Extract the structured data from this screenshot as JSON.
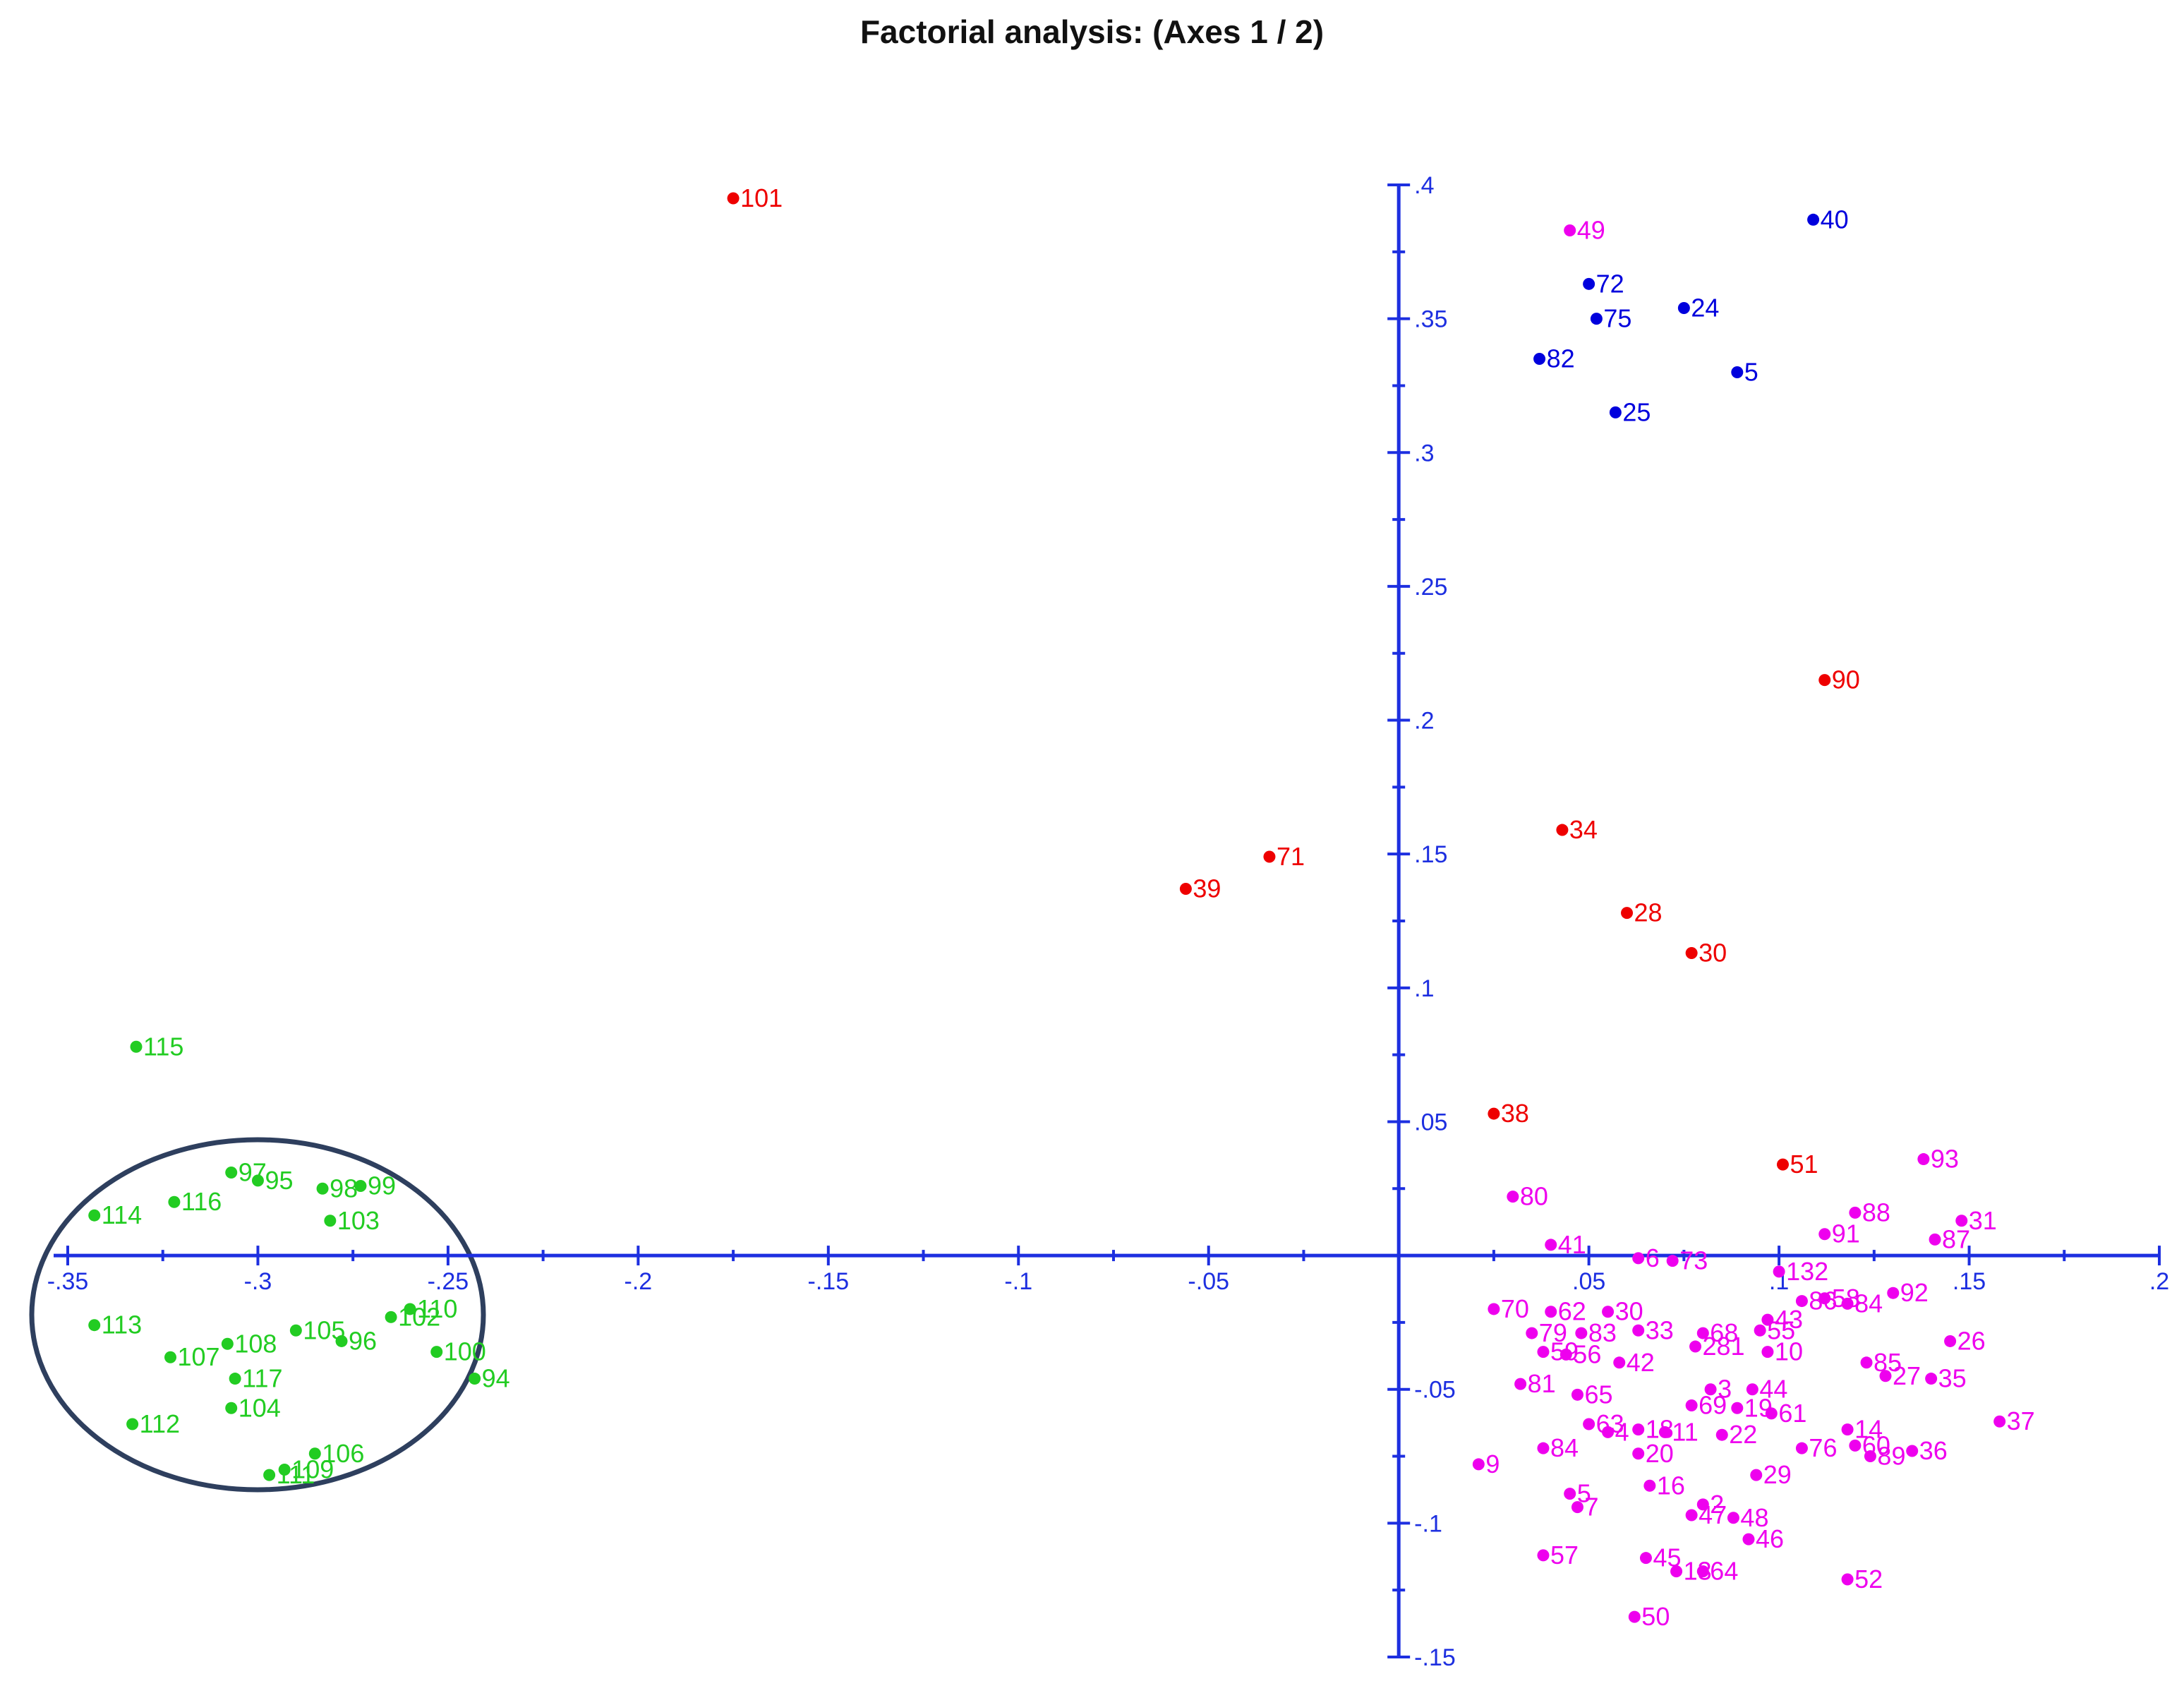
{
  "chart_data": {
    "type": "scatter",
    "title": "Factorial analysis: (Axes 1 / 2)",
    "xlabel": "",
    "ylabel": "",
    "xlim": [
      -0.35,
      0.2
    ],
    "ylim": [
      -0.15,
      0.4
    ],
    "x_ticks": [
      {
        "value": -0.35,
        "label": "-.35"
      },
      {
        "value": -0.3,
        "label": "-.3"
      },
      {
        "value": -0.25,
        "label": "-.25"
      },
      {
        "value": -0.2,
        "label": "-.2"
      },
      {
        "value": -0.15,
        "label": "-.15"
      },
      {
        "value": -0.1,
        "label": "-.1"
      },
      {
        "value": -0.05,
        "label": "-.05"
      },
      {
        "value": 0.05,
        "label": ".05"
      },
      {
        "value": 0.1,
        "label": ".1"
      },
      {
        "value": 0.15,
        "label": ".15"
      },
      {
        "value": 0.2,
        "label": ".2"
      }
    ],
    "y_ticks": [
      {
        "value": 0.4,
        "label": ".4"
      },
      {
        "value": 0.35,
        "label": ".35"
      },
      {
        "value": 0.3,
        "label": ".3"
      },
      {
        "value": 0.25,
        "label": ".25"
      },
      {
        "value": 0.2,
        "label": ".2"
      },
      {
        "value": 0.15,
        "label": ".15"
      },
      {
        "value": 0.1,
        "label": ".1"
      },
      {
        "value": 0.05,
        "label": ".05"
      },
      {
        "value": -0.05,
        "label": "-.05"
      },
      {
        "value": -0.1,
        "label": "-.1"
      },
      {
        "value": -0.15,
        "label": "-.15"
      }
    ],
    "grid": false,
    "legend": "none",
    "group_circle": {
      "color": "#2e3f5e"
    },
    "series": [
      {
        "color": "#0000dd",
        "points": [
          {
            "label": "40",
            "x": 0.109,
            "y": 0.387
          },
          {
            "label": "72",
            "x": 0.05,
            "y": 0.363
          },
          {
            "label": "75",
            "x": 0.052,
            "y": 0.35
          },
          {
            "label": "24",
            "x": 0.075,
            "y": 0.354
          },
          {
            "label": "82",
            "x": 0.037,
            "y": 0.335
          },
          {
            "label": "5",
            "x": 0.089,
            "y": 0.33
          },
          {
            "label": "25",
            "x": 0.057,
            "y": 0.315
          }
        ]
      },
      {
        "color": "#ee0000",
        "points": [
          {
            "label": "101",
            "x": -0.175,
            "y": 0.395
          },
          {
            "label": "90",
            "x": 0.112,
            "y": 0.215
          },
          {
            "label": "34",
            "x": 0.043,
            "y": 0.159
          },
          {
            "label": "71",
            "x": -0.034,
            "y": 0.149
          },
          {
            "label": "39",
            "x": -0.056,
            "y": 0.137
          },
          {
            "label": "28",
            "x": 0.06,
            "y": 0.128
          },
          {
            "label": "30",
            "x": 0.077,
            "y": 0.113
          },
          {
            "label": "38",
            "x": 0.025,
            "y": 0.053
          },
          {
            "label": "51",
            "x": 0.101,
            "y": 0.034
          }
        ]
      },
      {
        "color": "#22cc22",
        "points": [
          {
            "label": "115",
            "x": -0.332,
            "y": 0.078
          },
          {
            "label": "97",
            "x": -0.307,
            "y": 0.031
          },
          {
            "label": "95",
            "x": -0.3,
            "y": 0.028
          },
          {
            "label": "98",
            "x": -0.283,
            "y": 0.025
          },
          {
            "label": "99",
            "x": -0.273,
            "y": 0.026
          },
          {
            "label": "116",
            "x": -0.322,
            "y": 0.02
          },
          {
            "label": "114",
            "x": -0.343,
            "y": 0.015
          },
          {
            "label": "103",
            "x": -0.281,
            "y": 0.013
          },
          {
            "label": "113",
            "x": -0.343,
            "y": -0.026
          },
          {
            "label": "110",
            "x": -0.26,
            "y": -0.02
          },
          {
            "label": "102",
            "x": -0.265,
            "y": -0.023
          },
          {
            "label": "105",
            "x": -0.29,
            "y": -0.028
          },
          {
            "label": "96",
            "x": -0.278,
            "y": -0.032
          },
          {
            "label": "108",
            "x": -0.308,
            "y": -0.033
          },
          {
            "label": "107",
            "x": -0.323,
            "y": -0.038
          },
          {
            "label": "100",
            "x": -0.253,
            "y": -0.036
          },
          {
            "label": "117",
            "x": -0.306,
            "y": -0.046
          },
          {
            "label": "94",
            "x": -0.243,
            "y": -0.046
          },
          {
            "label": "104",
            "x": -0.307,
            "y": -0.057
          },
          {
            "label": "112",
            "x": -0.333,
            "y": -0.063
          },
          {
            "label": "106",
            "x": -0.285,
            "y": -0.074
          },
          {
            "label": "109",
            "x": -0.293,
            "y": -0.08
          },
          {
            "label": "111",
            "x": -0.297,
            "y": -0.082
          }
        ]
      },
      {
        "color": "#ee00ee",
        "points": [
          {
            "label": "49",
            "x": 0.045,
            "y": 0.383
          },
          {
            "label": "93",
            "x": 0.138,
            "y": 0.036
          },
          {
            "label": "80",
            "x": 0.03,
            "y": 0.022
          },
          {
            "label": "88",
            "x": 0.12,
            "y": 0.016
          },
          {
            "label": "31",
            "x": 0.148,
            "y": 0.013
          },
          {
            "label": "91",
            "x": 0.112,
            "y": 0.008
          },
          {
            "label": "87",
            "x": 0.141,
            "y": 0.006
          },
          {
            "label": "41",
            "x": 0.04,
            "y": 0.004
          },
          {
            "label": "6",
            "x": 0.063,
            "y": -0.001
          },
          {
            "label": "73",
            "x": 0.072,
            "y": -0.002
          },
          {
            "label": "132",
            "x": 0.1,
            "y": -0.006
          },
          {
            "label": "92",
            "x": 0.13,
            "y": -0.014
          },
          {
            "label": "86",
            "x": 0.106,
            "y": -0.017
          },
          {
            "label": "58",
            "x": 0.112,
            "y": -0.016
          },
          {
            "label": "84",
            "x": 0.118,
            "y": -0.018
          },
          {
            "label": "70",
            "x": 0.025,
            "y": -0.02
          },
          {
            "label": "62",
            "x": 0.04,
            "y": -0.021
          },
          {
            "label": "30",
            "x": 0.055,
            "y": -0.021
          },
          {
            "label": "43",
            "x": 0.097,
            "y": -0.024
          },
          {
            "label": "79",
            "x": 0.035,
            "y": -0.029
          },
          {
            "label": "83",
            "x": 0.048,
            "y": -0.029
          },
          {
            "label": "33",
            "x": 0.063,
            "y": -0.028
          },
          {
            "label": "68",
            "x": 0.08,
            "y": -0.029
          },
          {
            "label": "55",
            "x": 0.095,
            "y": -0.028
          },
          {
            "label": "281",
            "x": 0.078,
            "y": -0.034
          },
          {
            "label": "59",
            "x": 0.038,
            "y": -0.036
          },
          {
            "label": "56",
            "x": 0.044,
            "y": -0.037
          },
          {
            "label": "10",
            "x": 0.097,
            "y": -0.036
          },
          {
            "label": "26",
            "x": 0.145,
            "y": -0.032
          },
          {
            "label": "42",
            "x": 0.058,
            "y": -0.04
          },
          {
            "label": "85",
            "x": 0.123,
            "y": -0.04
          },
          {
            "label": "27",
            "x": 0.128,
            "y": -0.045
          },
          {
            "label": "35",
            "x": 0.14,
            "y": -0.046
          },
          {
            "label": "81",
            "x": 0.032,
            "y": -0.048
          },
          {
            "label": "65",
            "x": 0.047,
            "y": -0.052
          },
          {
            "label": "44",
            "x": 0.093,
            "y": -0.05
          },
          {
            "label": "3",
            "x": 0.082,
            "y": -0.05
          },
          {
            "label": "69",
            "x": 0.077,
            "y": -0.056
          },
          {
            "label": "19",
            "x": 0.089,
            "y": -0.057
          },
          {
            "label": "61",
            "x": 0.098,
            "y": -0.059
          },
          {
            "label": "37",
            "x": 0.158,
            "y": -0.062
          },
          {
            "label": "63",
            "x": 0.05,
            "y": -0.063
          },
          {
            "label": "4",
            "x": 0.055,
            "y": -0.066
          },
          {
            "label": "18",
            "x": 0.063,
            "y": -0.065
          },
          {
            "label": "11",
            "x": 0.07,
            "y": -0.066
          },
          {
            "label": "22",
            "x": 0.085,
            "y": -0.067
          },
          {
            "label": "14",
            "x": 0.118,
            "y": -0.065
          },
          {
            "label": "60",
            "x": 0.12,
            "y": -0.071
          },
          {
            "label": "76",
            "x": 0.106,
            "y": -0.072
          },
          {
            "label": "36",
            "x": 0.135,
            "y": -0.073
          },
          {
            "label": "89",
            "x": 0.124,
            "y": -0.075
          },
          {
            "label": "84",
            "x": 0.038,
            "y": -0.072
          },
          {
            "label": "20",
            "x": 0.063,
            "y": -0.074
          },
          {
            "label": "9",
            "x": 0.021,
            "y": -0.078
          },
          {
            "label": "29",
            "x": 0.094,
            "y": -0.082
          },
          {
            "label": "16",
            "x": 0.066,
            "y": -0.086
          },
          {
            "label": "5",
            "x": 0.045,
            "y": -0.089
          },
          {
            "label": "7",
            "x": 0.047,
            "y": -0.094
          },
          {
            "label": "2",
            "x": 0.08,
            "y": -0.093
          },
          {
            "label": "47",
            "x": 0.077,
            "y": -0.097
          },
          {
            "label": "48",
            "x": 0.088,
            "y": -0.098
          },
          {
            "label": "46",
            "x": 0.092,
            "y": -0.106
          },
          {
            "label": "57",
            "x": 0.038,
            "y": -0.112
          },
          {
            "label": "45",
            "x": 0.065,
            "y": -0.113
          },
          {
            "label": "13",
            "x": 0.073,
            "y": -0.118
          },
          {
            "label": "64",
            "x": 0.08,
            "y": -0.118
          },
          {
            "label": "52",
            "x": 0.118,
            "y": -0.121
          },
          {
            "label": "50",
            "x": 0.062,
            "y": -0.135
          }
        ]
      }
    ]
  }
}
